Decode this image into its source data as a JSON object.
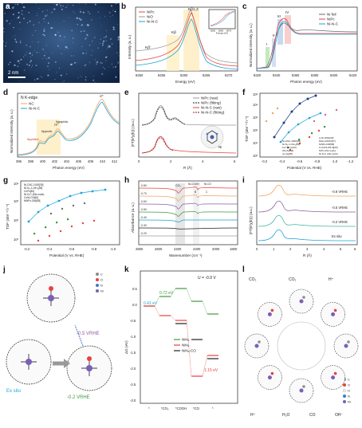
{
  "panels": {
    "a": {
      "label": "a",
      "scalebar": "2 nm"
    },
    "b": {
      "label": "b",
      "xlabel": "Energy (eV)",
      "ylabel": "Intensity (a. u.)",
      "legend": [
        "NiPc",
        "NiO",
        "Ni-N-C"
      ],
      "peaks": [
        "Kβ",
        "Kβ'",
        "Kβ1,3"
      ],
      "xticks": [
        "8250",
        "8255",
        "8260",
        "8265",
        "8270"
      ],
      "inset": {
        "xlabel": "Energy (eV)",
        "xticks": [
          "8250",
          "8260",
          "8270"
        ]
      },
      "colors": {
        "NiPc": "#e8413c",
        "NiO": "#9a9a9a",
        "Ni-N-C": "#1aa3d9"
      }
    },
    "c": {
      "label": "c",
      "xlabel": "Photon energy (eV)",
      "ylabel": "Normalized intensity (a. u.)",
      "legend": [
        "Ni foil",
        "NiPc",
        "Ni-N-C"
      ],
      "regions": [
        "I",
        "II",
        "III",
        "IV"
      ],
      "xticks": [
        "8320",
        "8340",
        "8360",
        "8380",
        "8400",
        "8420"
      ]
    },
    "d": {
      "label": "d",
      "title": "N K-edge",
      "xlabel": "Photon energy (eV)",
      "ylabel": "Normalized intensity (a. u.)",
      "legend": [
        "NC",
        "Ni-N-C"
      ],
      "features": [
        "σ*",
        "π*",
        "Npyridinic",
        "Npyrrolic",
        "Ngraphitic"
      ],
      "xticks": [
        "396",
        "398",
        "400",
        "402",
        "404",
        "406",
        "408",
        "410",
        "412"
      ]
    },
    "e": {
      "label": "e",
      "xlabel": "R (Å)",
      "ylabel": "|FT(k³χ(k))| (a.u.)",
      "legend": [
        "NiPc (raw)",
        "NiPc (fitting)",
        "Ni-N-C (raw)",
        "Ni-N-C (fitting)"
      ],
      "xticks": [
        "0",
        "2",
        "4",
        "6"
      ],
      "atom": "Ni"
    },
    "f": {
      "label": "f",
      "xlabel": "Potential (V vs. RHE)",
      "ylabel": "TOF (site⁻¹ h⁻¹)",
      "xticks": [
        "-0.2",
        "-0.4",
        "-0.6",
        "-0.8",
        "-1.0",
        "-1.2"
      ],
      "yticks": [
        "10⁰",
        "10¹",
        "10²",
        "10³",
        "10⁴",
        "10⁵"
      ],
      "legend": [
        "Ni-CNC-1000[39]",
        "Ni-N₄-C-NH₂[55]",
        "Fe³⁺-N-C[33]",
        "OD-Au[34]",
        "np-Ag[35]",
        "A-Ni-NSG[39]",
        "NiFe-DASC[57]",
        "NiNPc-DM[58]",
        "C-Zn/Ni-ZIF-8[20]",
        "NiPc (this work)",
        "Ni-N-C (this work)"
      ]
    },
    "g": {
      "label": "g",
      "xlabel": "Potential (V vs. RHE)",
      "ylabel": "TOF (site⁻¹ h⁻¹)",
      "xticks": [
        "-0.2",
        "-0.4",
        "-0.6",
        "-0.8",
        "-1.0"
      ],
      "yticks": [
        "10¹",
        "10²",
        "10³",
        "10⁴"
      ],
      "legend": [
        "Ni-CNC-1000[39]",
        "Ni-N₄-C-NH₂[55]",
        "CoPc[60]",
        "Ni-N-C (this work)",
        "CoNi-CN[60]",
        "NiNPc-DM[58]"
      ]
    },
    "h": {
      "label": "h",
      "xlabel": "Wavenumber (cm⁻¹)",
      "ylabel": "Absorbance (a. u.)",
      "potentials": [
        "-0.8V",
        "-0.7V",
        "-0.6V",
        "-0.5V",
        "-0.4V",
        "-0.3V",
        "-0.2V"
      ],
      "bands": [
        "CO₂",
        "Ni-COOH",
        "Ni-CO",
        "B",
        "C"
      ],
      "xticks": [
        "2800",
        "2600",
        "2400",
        "2200",
        "2000",
        "1800"
      ]
    },
    "i": {
      "label": "i",
      "xlabel": "R (Å)",
      "ylabel": "|FT(k³χ(k))| (a.u.)",
      "curves": [
        "-0.8 VRHE",
        "-0.5 VRHE",
        "-0.2 VRHE",
        "Ex situ"
      ],
      "xticks": [
        "0",
        "1",
        "2",
        "3",
        "4",
        "5",
        "6"
      ]
    },
    "j": {
      "label": "j",
      "states": [
        "Ex situ",
        "-0.2 VRHE",
        "-0.5 VRHE"
      ],
      "elements": [
        "C",
        "O",
        "N",
        "Ni"
      ]
    },
    "k": {
      "label": "k",
      "title": "U = -0.9 V",
      "ylabel": "ΔG (eV)",
      "xticks": [
        "*",
        "*CO₂",
        "*COOH",
        "*CO",
        "*"
      ],
      "yticks": [
        "0.5",
        "0.0",
        "-0.5",
        "-1.0",
        "-1.5",
        "-2.0",
        "-2.5",
        "-3.0"
      ],
      "legend": [
        "NiN₄",
        "NiN₂",
        "NiN₂-CO"
      ],
      "energies": [
        "0.41 eV",
        "0.72 eV",
        "1.15 eV"
      ]
    },
    "l": {
      "label": "l",
      "species": [
        "CO₂",
        "CO₂",
        "H⁺",
        "H⁺",
        "OH⁻",
        "H₂O",
        "CO"
      ],
      "elements": [
        "C",
        "O",
        "H",
        "N",
        "Ni"
      ]
    }
  }
}
